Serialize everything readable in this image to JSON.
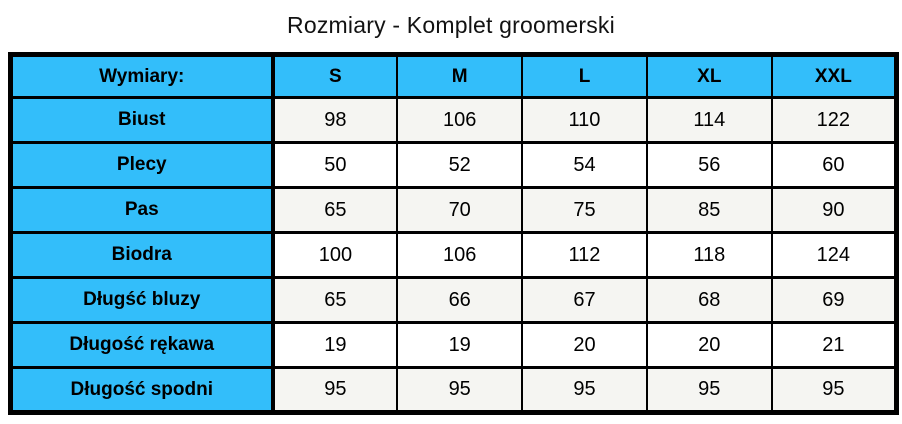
{
  "title": "Rozmiary - Komplet groomerski",
  "table": {
    "header": {
      "label": "Wymiary:",
      "sizes": [
        "S",
        "M",
        "L",
        "XL",
        "XXL"
      ]
    },
    "rows": [
      {
        "label": "Biust",
        "values": [
          "98",
          "106",
          "110",
          "114",
          "122"
        ]
      },
      {
        "label": "Plecy",
        "values": [
          "50",
          "52",
          "54",
          "56",
          "60"
        ]
      },
      {
        "label": "Pas",
        "values": [
          "65",
          "70",
          "75",
          "85",
          "90"
        ]
      },
      {
        "label": "Biodra",
        "values": [
          "100",
          "106",
          "112",
          "118",
          "124"
        ]
      },
      {
        "label": "Długść bluzy",
        "values": [
          "65",
          "66",
          "67",
          "68",
          "69"
        ]
      },
      {
        "label": "Długość rękawa",
        "values": [
          "19",
          "19",
          "20",
          "20",
          "21"
        ]
      },
      {
        "label": "Długość spodni",
        "values": [
          "95",
          "95",
          "95",
          "95",
          "95"
        ]
      }
    ]
  },
  "colors": {
    "header_blue": "#33BEFA",
    "row_alt_gray": "#F5F5F2",
    "row_white": "#FFFFFF",
    "border_black": "#000000"
  },
  "chart_data": {
    "type": "table",
    "title": "Rozmiary - Komplet groomerski",
    "columns": [
      "Wymiary:",
      "S",
      "M",
      "L",
      "XL",
      "XXL"
    ],
    "rows": [
      [
        "Biust",
        98,
        106,
        110,
        114,
        122
      ],
      [
        "Plecy",
        50,
        52,
        54,
        56,
        60
      ],
      [
        "Pas",
        65,
        70,
        75,
        85,
        90
      ],
      [
        "Biodra",
        100,
        106,
        112,
        118,
        124
      ],
      [
        "Długść bluzy",
        65,
        66,
        67,
        68,
        69
      ],
      [
        "Długość rękawa",
        19,
        19,
        20,
        20,
        21
      ],
      [
        "Długość spodni",
        95,
        95,
        95,
        95,
        95
      ]
    ]
  }
}
